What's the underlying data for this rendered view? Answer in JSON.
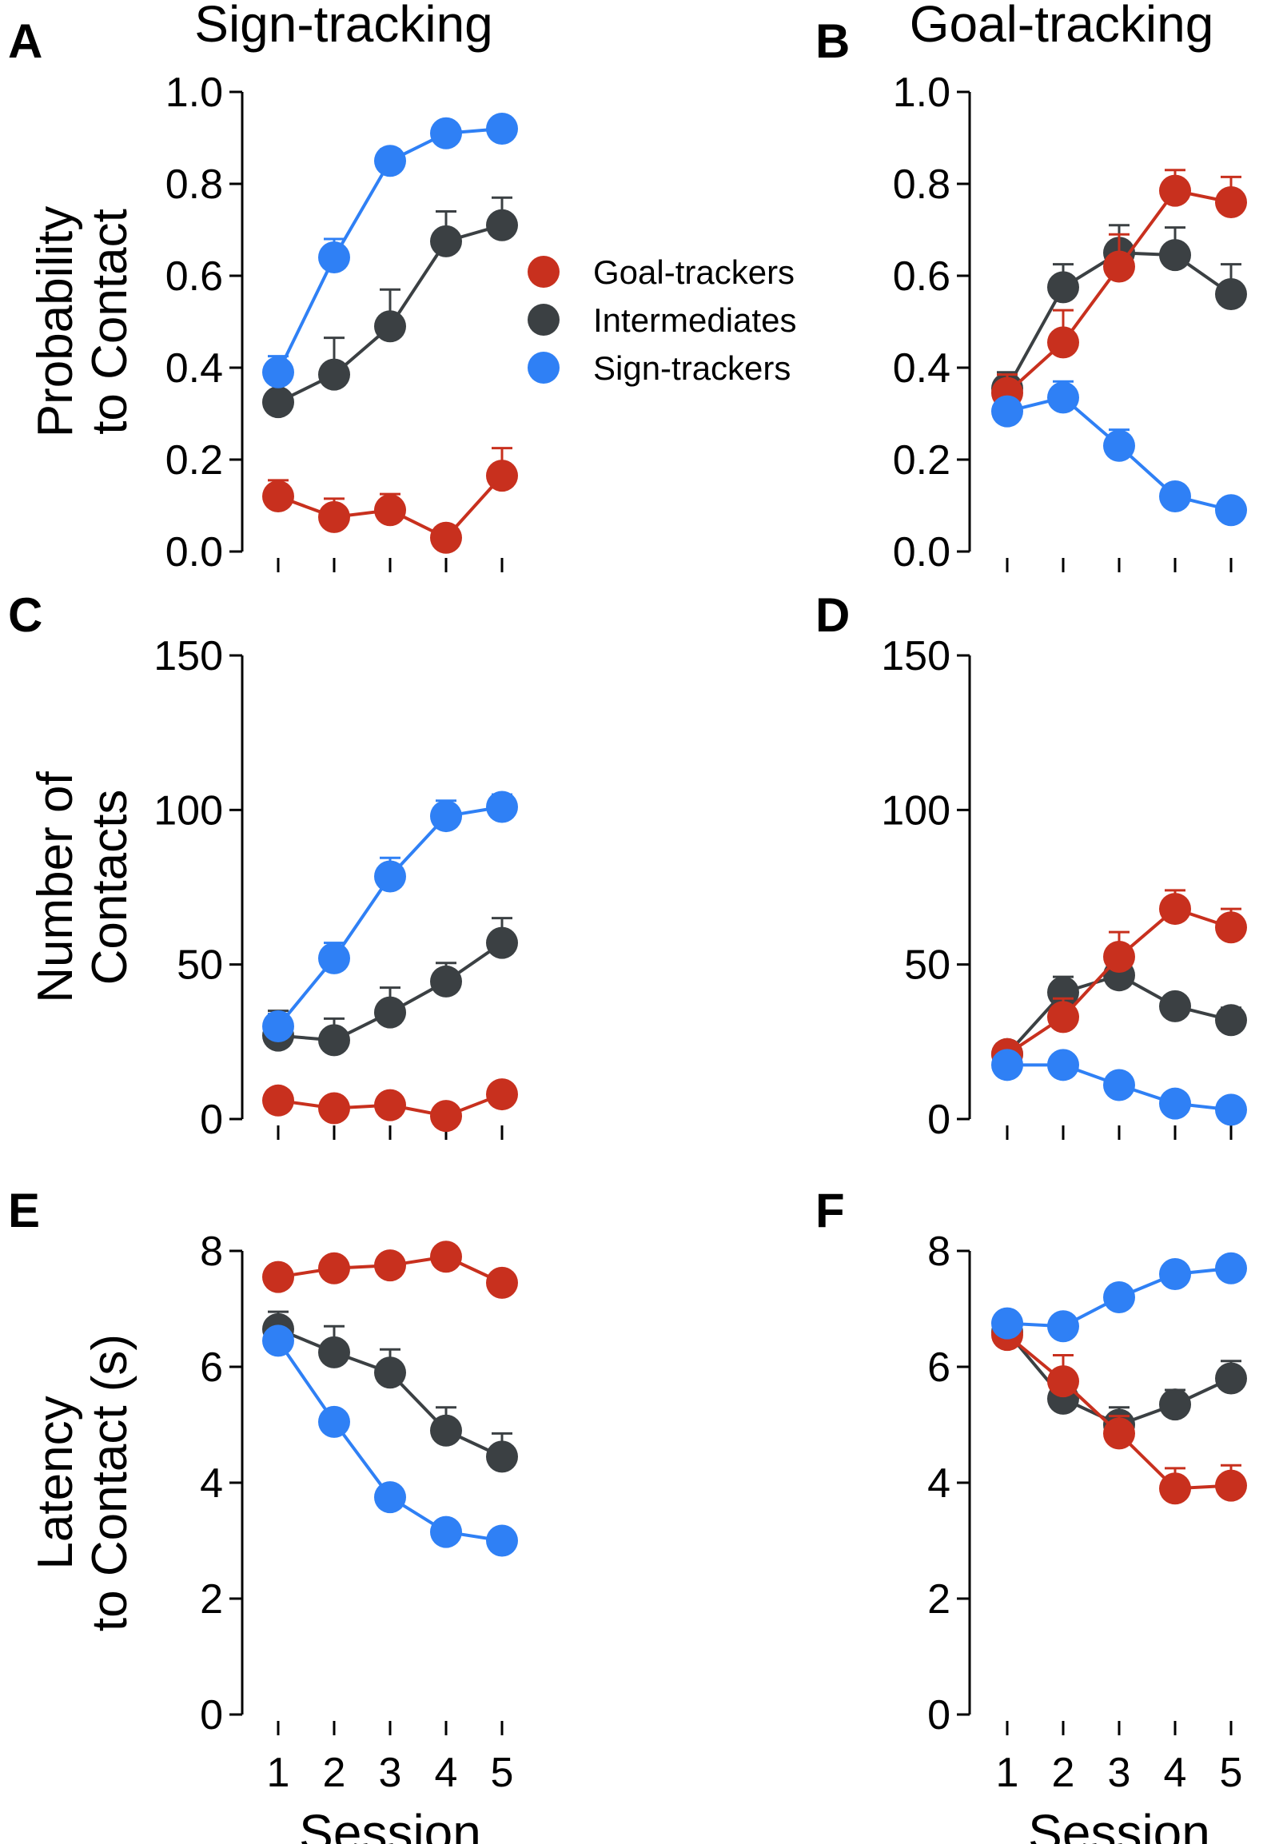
{
  "figure": {
    "column_titles": [
      "Sign-tracking",
      "Goal-tracking"
    ],
    "legend": [
      {
        "label": "Goal-trackers",
        "color": "#c8301e"
      },
      {
        "label": "Intermediates",
        "color": "#3b4043"
      },
      {
        "label": "Sign-trackers",
        "color": "#2f80f5"
      }
    ]
  },
  "chart_data": [
    {
      "panel": "A",
      "type": "line",
      "column": "Sign-tracking",
      "ylabel": [
        "Probability",
        "to Contact"
      ],
      "xlabel": "",
      "categories": [
        "1",
        "2",
        "3",
        "4",
        "5"
      ],
      "ylim": [
        0,
        1
      ],
      "yticks": [
        "0.0",
        "0.2",
        "0.4",
        "0.6",
        "0.8",
        "1.0"
      ],
      "series": [
        {
          "name": "Goal-trackers",
          "values": [
            0.12,
            0.075,
            0.09,
            0.03,
            0.165
          ],
          "errors": [
            0.035,
            0.04,
            0.035,
            0.0,
            0.06
          ]
        },
        {
          "name": "Intermediates",
          "values": [
            0.325,
            0.385,
            0.49,
            0.675,
            0.71
          ],
          "errors": [
            0.0,
            0.08,
            0.08,
            0.065,
            0.06
          ]
        },
        {
          "name": "Sign-trackers",
          "values": [
            0.39,
            0.64,
            0.85,
            0.91,
            0.92
          ],
          "errors": [
            0.035,
            0.04,
            0.025,
            0.015,
            0.01
          ]
        }
      ]
    },
    {
      "panel": "B",
      "type": "line",
      "column": "Goal-tracking",
      "ylabel": [],
      "xlabel": "",
      "categories": [
        "1",
        "2",
        "3",
        "4",
        "5"
      ],
      "ylim": [
        0,
        1
      ],
      "yticks": [
        "0.0",
        "0.2",
        "0.4",
        "0.6",
        "0.8",
        "1.0"
      ],
      "series": [
        {
          "name": "Goal-trackers",
          "values": [
            0.345,
            0.455,
            0.62,
            0.785,
            0.76
          ],
          "errors": [
            0.04,
            0.07,
            0.07,
            0.045,
            0.055
          ]
        },
        {
          "name": "Intermediates",
          "values": [
            0.355,
            0.575,
            0.65,
            0.645,
            0.56
          ],
          "errors": [
            0.035,
            0.05,
            0.06,
            0.06,
            0.065
          ]
        },
        {
          "name": "Sign-trackers",
          "values": [
            0.305,
            0.335,
            0.23,
            0.12,
            0.09
          ],
          "errors": [
            0.0,
            0.035,
            0.035,
            0.0,
            0.0
          ]
        }
      ]
    },
    {
      "panel": "C",
      "type": "line",
      "column": "Sign-tracking",
      "ylabel": [
        "Number of",
        "Contacts"
      ],
      "xlabel": "",
      "categories": [
        "1",
        "2",
        "3",
        "4",
        "5"
      ],
      "ylim": [
        0,
        150
      ],
      "yticks": [
        "0",
        "50",
        "100",
        "150"
      ],
      "series": [
        {
          "name": "Goal-trackers",
          "values": [
            6,
            3.5,
            4.5,
            1,
            8
          ],
          "errors": [
            0,
            0,
            0,
            0,
            0
          ]
        },
        {
          "name": "Intermediates",
          "values": [
            27,
            25.5,
            34.5,
            44.5,
            57
          ],
          "errors": [
            8,
            7,
            8,
            6,
            8
          ]
        },
        {
          "name": "Sign-trackers",
          "values": [
            30,
            52,
            78.5,
            98,
            101
          ],
          "errors": [
            4,
            5,
            6,
            5,
            4
          ]
        }
      ]
    },
    {
      "panel": "D",
      "type": "line",
      "column": "Goal-tracking",
      "ylabel": [],
      "xlabel": "",
      "categories": [
        "1",
        "2",
        "3",
        "4",
        "5"
      ],
      "ylim": [
        0,
        150
      ],
      "yticks": [
        "0",
        "50",
        "100",
        "150"
      ],
      "series": [
        {
          "name": "Goal-trackers",
          "values": [
            21,
            33,
            52.5,
            68,
            62
          ],
          "errors": [
            0,
            6,
            8,
            6,
            6
          ]
        },
        {
          "name": "Intermediates",
          "values": [
            21,
            41,
            46.5,
            36.5,
            32
          ],
          "errors": [
            0,
            5,
            5,
            0,
            4
          ]
        },
        {
          "name": "Sign-trackers",
          "values": [
            17.5,
            17.5,
            11,
            5,
            3
          ],
          "errors": [
            0,
            0,
            0,
            0,
            0
          ]
        }
      ]
    },
    {
      "panel": "E",
      "type": "line",
      "column": "Sign-tracking",
      "ylabel": [
        "Latency",
        "to Contact (s)"
      ],
      "xlabel": "Session",
      "categories": [
        "1",
        "2",
        "3",
        "4",
        "5"
      ],
      "ylim": [
        0,
        8
      ],
      "yticks": [
        "0",
        "2",
        "4",
        "6",
        "8"
      ],
      "series": [
        {
          "name": "Goal-trackers",
          "values": [
            7.55,
            7.7,
            7.75,
            7.9,
            7.45
          ],
          "errors": [
            0,
            0,
            0,
            0,
            0
          ]
        },
        {
          "name": "Intermediates",
          "values": [
            6.65,
            6.25,
            5.9,
            4.9,
            4.45
          ],
          "errors": [
            0.3,
            0.45,
            0.4,
            0.4,
            0.4
          ]
        },
        {
          "name": "Sign-trackers",
          "values": [
            6.45,
            5.05,
            3.75,
            3.15,
            3.0
          ],
          "errors": [
            0,
            0.15,
            0.1,
            0,
            0
          ]
        }
      ]
    },
    {
      "panel": "F",
      "type": "line",
      "column": "Goal-tracking",
      "ylabel": [],
      "xlabel": "Session",
      "categories": [
        "1",
        "2",
        "3",
        "4",
        "5"
      ],
      "ylim": [
        0,
        8
      ],
      "yticks": [
        "0",
        "2",
        "4",
        "6",
        "8"
      ],
      "series": [
        {
          "name": "Goal-trackers",
          "values": [
            6.55,
            5.75,
            4.85,
            3.9,
            3.95
          ],
          "errors": [
            0,
            0.45,
            0.3,
            0.35,
            0.35
          ]
        },
        {
          "name": "Intermediates",
          "values": [
            6.6,
            5.45,
            5.0,
            5.35,
            5.8
          ],
          "errors": [
            0,
            0.3,
            0.3,
            0.25,
            0.3
          ]
        },
        {
          "name": "Sign-trackers",
          "values": [
            6.75,
            6.7,
            7.2,
            7.6,
            7.7
          ],
          "errors": [
            0,
            0,
            0,
            0,
            0
          ]
        }
      ]
    }
  ]
}
